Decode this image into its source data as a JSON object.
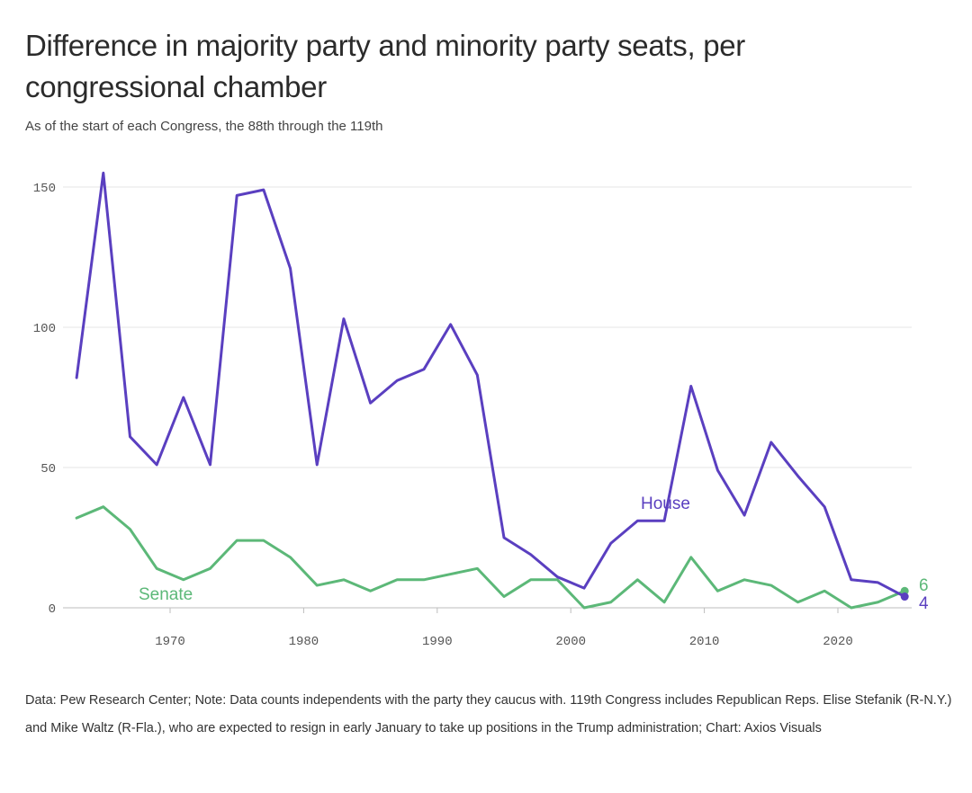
{
  "title": "Difference in majority party and minority party seats, per congressional chamber",
  "subtitle": "As of the start of each Congress, the 88th through the 119th",
  "note": "Data: Pew Research Center; Note: Data counts independents with the party they caucus with. 119th Congress includes Republican Reps. Elise Stefanik (R-N.Y.) and Mike Waltz (R-Fla.), who are expected to resign in early January to take up positions in the Trump administration; Chart: Axios Visuals",
  "chart_data": {
    "type": "line",
    "title": "Difference in majority party and minority party seats, per congressional chamber",
    "xlim": [
      1962,
      2026
    ],
    "ylim": [
      0,
      160
    ],
    "x_ticks": [
      "1970",
      "1980",
      "1990",
      "2000",
      "2010",
      "2020"
    ],
    "y_ticks": [
      "0",
      "50",
      "100",
      "150"
    ],
    "grid": "horizontal",
    "legend": "inline labels",
    "x": [
      1963,
      1965,
      1967,
      1969,
      1971,
      1973,
      1975,
      1977,
      1979,
      1981,
      1983,
      1985,
      1987,
      1989,
      1991,
      1993,
      1995,
      1997,
      1999,
      2001,
      2003,
      2005,
      2007,
      2009,
      2011,
      2013,
      2015,
      2017,
      2019,
      2021,
      2023,
      2025
    ],
    "series": [
      {
        "name": "House",
        "color": "#5a3fc0",
        "values": [
          82,
          155,
          61,
          51,
          75,
          51,
          147,
          149,
          121,
          51,
          103,
          73,
          81,
          85,
          101,
          83,
          25,
          19,
          11,
          7,
          23,
          31,
          31,
          79,
          49,
          33,
          59,
          47,
          36,
          10,
          9,
          4
        ],
        "end_label": "4"
      },
      {
        "name": "Senate",
        "color": "#5cb878",
        "values": [
          32,
          36,
          28,
          14,
          10,
          14,
          24,
          24,
          18,
          8,
          10,
          6,
          10,
          10,
          12,
          14,
          4,
          10,
          10,
          0,
          2,
          10,
          2,
          18,
          6,
          10,
          8,
          2,
          6,
          0,
          2,
          6
        ],
        "end_label": "6"
      }
    ]
  }
}
